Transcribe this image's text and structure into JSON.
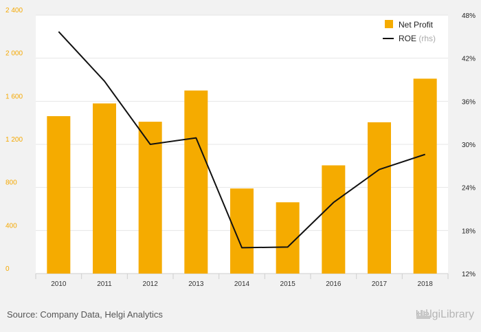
{
  "chart_data": {
    "type": "bar",
    "categories": [
      "2010",
      "2011",
      "2012",
      "2013",
      "2014",
      "2015",
      "2016",
      "2017",
      "2018"
    ],
    "series": [
      {
        "name": "Net Profit",
        "type": "bar",
        "axis": "left",
        "color": "#f5ab00",
        "values": [
          1462,
          1580,
          1410,
          1700,
          790,
          662,
          1005,
          1405,
          1810
        ]
      },
      {
        "name": "ROE",
        "name_suffix": "(rhs)",
        "type": "line",
        "axis": "right",
        "color": "#111111",
        "values": [
          45.7,
          38.8,
          30.0,
          30.9,
          15.6,
          15.7,
          21.9,
          26.5,
          28.6
        ]
      }
    ],
    "left_axis": {
      "ylim": [
        0,
        2400
      ],
      "ticks": [
        0,
        400,
        800,
        1200,
        1600,
        2000,
        2400
      ],
      "tick_labels": [
        "0",
        "400",
        "800",
        "1 200",
        "1 600",
        "2 000",
        "2 400"
      ]
    },
    "right_axis": {
      "ylim": [
        12,
        48
      ],
      "ticks": [
        12,
        18,
        24,
        30,
        36,
        42,
        48
      ],
      "tick_labels": [
        "12%",
        "18%",
        "24%",
        "30%",
        "36%",
        "42%",
        "48%"
      ]
    },
    "grid": true,
    "legend_position": "top-right"
  },
  "footer": {
    "source": "Source: Company Data, Helgi Analytics",
    "brand": "HelgiLibrary"
  }
}
